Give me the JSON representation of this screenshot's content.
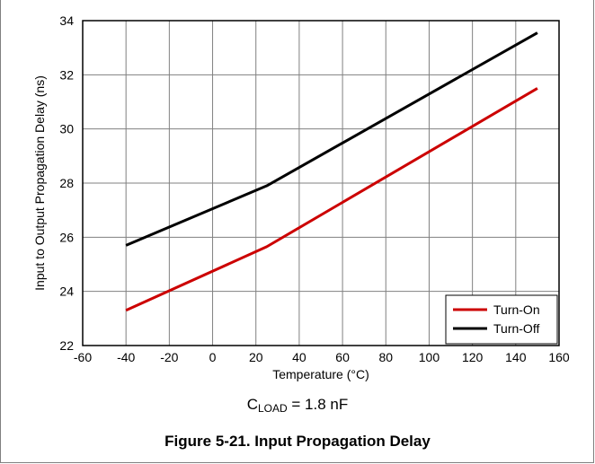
{
  "chart_data": {
    "type": "line",
    "xlabel": "Temperature (°C)",
    "ylabel": "Input to Output Propagation Delay (ns)",
    "xlim": [
      -60,
      160
    ],
    "ylim": [
      22,
      34
    ],
    "xticks": [
      -60,
      -40,
      -20,
      0,
      20,
      40,
      60,
      80,
      100,
      120,
      140,
      160
    ],
    "yticks": [
      22,
      24,
      26,
      28,
      30,
      32,
      34
    ],
    "grid": true,
    "legend_position": "bottom-right",
    "series": [
      {
        "name": "Turn-On",
        "color": "#cc0000",
        "x": [
          -40,
          25,
          150
        ],
        "y": [
          23.3,
          25.65,
          31.5
        ]
      },
      {
        "name": "Turn-Off",
        "color": "#000000",
        "x": [
          -40,
          25,
          150
        ],
        "y": [
          25.7,
          27.9,
          33.55
        ]
      }
    ]
  },
  "annotation": {
    "prefix": "C",
    "subscript": "LOAD",
    "suffix": " = 1.8 nF"
  },
  "caption": "Figure 5-21. Input Propagation Delay"
}
